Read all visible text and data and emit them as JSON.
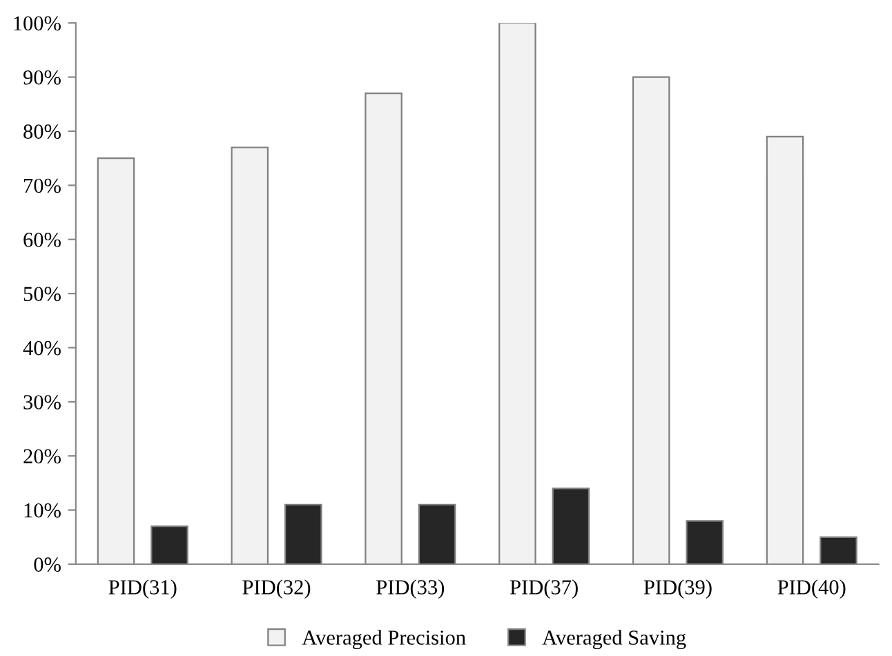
{
  "chart_data": {
    "type": "bar",
    "categories": [
      "PID(31)",
      "PID(32)",
      "PID(33)",
      "PID(37)",
      "PID(39)",
      "PID(40)"
    ],
    "series": [
      {
        "name": "Averaged Precision",
        "color": "#f2f2f2",
        "values": [
          75,
          77,
          87,
          100,
          90,
          79
        ]
      },
      {
        "name": "Averaged Saving",
        "color": "#262626",
        "values": [
          7,
          11,
          11,
          14,
          8,
          5
        ]
      }
    ],
    "ylim": [
      0,
      100
    ],
    "yticks": [
      {
        "value": 0,
        "label": "0%"
      },
      {
        "value": 10,
        "label": "10%"
      },
      {
        "value": 20,
        "label": "20%"
      },
      {
        "value": 30,
        "label": "30%"
      },
      {
        "value": 40,
        "label": "40%"
      },
      {
        "value": 50,
        "label": "50%"
      },
      {
        "value": 60,
        "label": "60%"
      },
      {
        "value": 70,
        "label": "70%"
      },
      {
        "value": 80,
        "label": "80%"
      },
      {
        "value": 90,
        "label": "90%"
      },
      {
        "value": 100,
        "label": "100%"
      }
    ],
    "grid": false,
    "legend": "bottom"
  }
}
